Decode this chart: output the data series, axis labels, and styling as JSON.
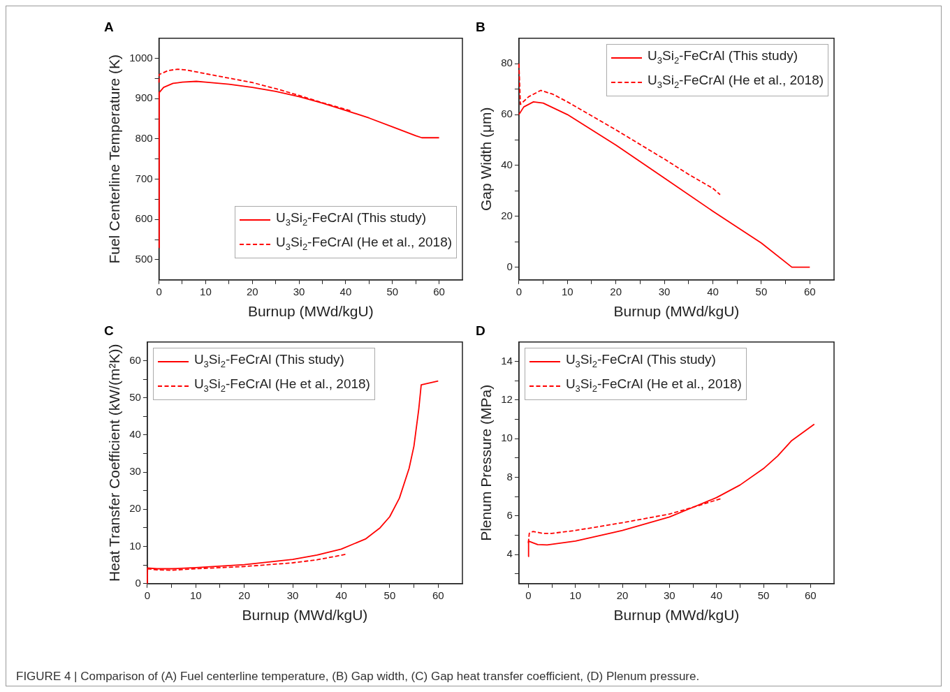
{
  "chart_data": [
    {
      "type": "line",
      "title": "A",
      "xlabel": "Burnup (MWd/kgU)",
      "ylabel": "Fuel Centerline Temperature (K)",
      "xlim": [
        0,
        65
      ],
      "ylim": [
        450,
        1050
      ],
      "xticks": [
        0,
        {
          "value": 5,
          "label": null
        },
        10,
        {
          "value": 15,
          "label": null
        },
        20,
        {
          "value": 25,
          "label": null
        },
        30,
        {
          "value": 35,
          "label": null
        },
        40,
        {
          "value": 45,
          "label": null
        },
        50,
        {
          "value": 55,
          "label": null
        },
        60
      ],
      "yticks": [
        500,
        {
          "value": 550,
          "label": null
        },
        600,
        {
          "value": 650,
          "label": null
        },
        700,
        {
          "value": 750,
          "label": null
        },
        800,
        {
          "value": 850,
          "label": null
        },
        900,
        {
          "value": 950,
          "label": null
        },
        1000
      ],
      "legend": "bottom right",
      "series": [
        {
          "name": "U$_{3}$Si$_{2}$-FeCrAl (This study)",
          "color": "#ff0000",
          "line_style": "solid",
          "x": [
            0,
            0.05,
            1,
            3,
            5,
            8,
            10,
            15,
            20,
            25,
            30,
            35,
            40,
            45,
            50,
            55,
            56.3,
            60
          ],
          "values": [
            530,
            915,
            928,
            938,
            941,
            943,
            941,
            936,
            928,
            918,
            905,
            889,
            871,
            852,
            830,
            808,
            803,
            803
          ]
        },
        {
          "name": "U$_{3}$Si$_{2}$-FeCrAl (He et al., 2018)",
          "color": "#ff0000",
          "line_style": "dashed",
          "x": [
            0,
            0.05,
            2,
            4,
            6,
            10,
            15,
            20,
            25,
            30,
            35,
            41
          ],
          "values": [
            940,
            960,
            970,
            973,
            971,
            962,
            951,
            940,
            925,
            908,
            890,
            870
          ]
        }
      ],
      "annotations": [
        "FIGURE 4 | Comparison of (A) Fuel centerline temperature, (B) Gap width, (C) Gap heat transfer coefficient, (D) Plenum pressure."
      ]
    },
    {
      "type": "line",
      "title": "B",
      "xlabel": "Burnup (MWd/kgU)",
      "ylabel": "Gap Width (μm)",
      "xlim": [
        0,
        65
      ],
      "ylim": [
        -5,
        90
      ],
      "xticks": [
        0,
        {
          "value": 5,
          "label": null
        },
        10,
        {
          "value": 15,
          "label": null
        },
        20,
        {
          "value": 25,
          "label": null
        },
        30,
        {
          "value": 35,
          "label": null
        },
        40,
        {
          "value": 45,
          "label": null
        },
        50,
        {
          "value": 55,
          "label": null
        },
        60
      ],
      "yticks": [
        0,
        {
          "value": 10,
          "label": null
        },
        20,
        {
          "value": 30,
          "label": null
        },
        40,
        {
          "value": 50,
          "label": null
        },
        60,
        {
          "value": 70,
          "label": null
        },
        80
      ],
      "legend": "top right",
      "series": [
        {
          "name": "U$_{3}$Si$_{2}$-FeCrAl (This study)",
          "color": "#ff0000",
          "line_style": "solid",
          "x": [
            0,
            1,
            3,
            5,
            10,
            20,
            30,
            40,
            50,
            56.3,
            60
          ],
          "values": [
            60,
            63,
            65,
            64.5,
            60,
            48,
            35,
            22,
            9.5,
            0,
            0
          ]
        },
        {
          "name": "U$_{3}$Si$_{2}$-FeCrAl (He et al., 2018)",
          "color": "#ff0000",
          "line_style": "dashed",
          "x": [
            0,
            0.3,
            2,
            4.5,
            7,
            10,
            20,
            30,
            35,
            40,
            41.5
          ],
          "values": [
            80,
            64,
            67,
            69.5,
            68,
            65,
            54,
            42.5,
            36.5,
            31,
            28.5
          ]
        }
      ]
    },
    {
      "type": "line",
      "title": "C",
      "xlabel": "Burnup (MWd/kgU)",
      "ylabel": "Heat Transfer Coefficient (kW/(m²K))",
      "xlim": [
        0,
        65
      ],
      "ylim": [
        0,
        65
      ],
      "xticks": [
        0,
        {
          "value": 5,
          "label": null
        },
        10,
        {
          "value": 15,
          "label": null
        },
        20,
        {
          "value": 25,
          "label": null
        },
        30,
        {
          "value": 35,
          "label": null
        },
        40,
        {
          "value": 45,
          "label": null
        },
        50,
        {
          "value": 55,
          "label": null
        },
        60
      ],
      "yticks": [
        0,
        {
          "value": 5,
          "label": null
        },
        10,
        {
          "value": 15,
          "label": null
        },
        20,
        {
          "value": 25,
          "label": null
        },
        30,
        {
          "value": 35,
          "label": null
        },
        40,
        {
          "value": 45,
          "label": null
        },
        50,
        {
          "value": 55,
          "label": null
        },
        60
      ],
      "legend": "top left",
      "series": [
        {
          "name": "U$_{3}$Si$_{2}$-FeCrAl (This study)",
          "color": "#ff0000",
          "line_style": "solid",
          "x": [
            0,
            0.05,
            2,
            5,
            10,
            20,
            30,
            35,
            40,
            45,
            48,
            50,
            52,
            54,
            55,
            56,
            56.5,
            60
          ],
          "values": [
            0,
            4.2,
            4,
            4,
            4.3,
            5.1,
            6.5,
            7.7,
            9.3,
            12,
            15,
            18,
            23,
            31,
            37,
            47,
            53.5,
            54.5
          ]
        },
        {
          "name": "U$_{3}$Si$_{2}$-FeCrAl (He et al., 2018)",
          "color": "#ff0000",
          "line_style": "dashed",
          "x": [
            0,
            2,
            5,
            10,
            20,
            30,
            35,
            41
          ],
          "values": [
            4,
            3.7,
            3.6,
            4,
            4.6,
            5.6,
            6.4,
            7.9
          ]
        }
      ]
    },
    {
      "type": "line",
      "title": "D",
      "xlabel": "Burnup (MWd/kgU)",
      "ylabel": "Plenum Pressure (MPa)",
      "xlim": [
        -2,
        65
      ],
      "ylim": [
        2.5,
        15
      ],
      "xticks": [
        0,
        {
          "value": 5,
          "label": null
        },
        10,
        {
          "value": 15,
          "label": null
        },
        20,
        {
          "value": 25,
          "label": null
        },
        30,
        {
          "value": 35,
          "label": null
        },
        40,
        {
          "value": 45,
          "label": null
        },
        50,
        {
          "value": 55,
          "label": null
        },
        60
      ],
      "yticks": [
        {
          "value": 3,
          "label": null
        },
        4,
        {
          "value": 5,
          "label": null
        },
        6,
        {
          "value": 7,
          "label": null
        },
        8,
        {
          "value": 9,
          "label": null
        },
        10,
        {
          "value": 11,
          "label": null
        },
        12,
        {
          "value": 13,
          "label": null
        },
        14
      ],
      "legend": "top left",
      "series": [
        {
          "name": "U$_{3}$Si$_{2}$-FeCrAl (This study)",
          "color": "#ff0000",
          "line_style": "solid",
          "x": [
            0,
            0.05,
            2,
            4,
            10,
            20,
            30,
            35,
            40,
            45,
            50,
            53,
            56,
            60.8
          ],
          "values": [
            3.9,
            4.7,
            4.52,
            4.5,
            4.7,
            5.25,
            5.95,
            6.45,
            6.95,
            7.6,
            8.45,
            9.1,
            9.9,
            10.75
          ]
        },
        {
          "name": "U$_{3}$Si$_{2}$-FeCrAl (He et al., 2018)",
          "color": "#ff0000",
          "line_style": "dashed",
          "x": [
            0,
            0.2,
            1,
            3,
            5,
            10,
            20,
            30,
            35,
            41
          ],
          "values": [
            4.6,
            5.1,
            5.2,
            5.1,
            5.1,
            5.25,
            5.65,
            6.1,
            6.45,
            6.9
          ]
        }
      ]
    }
  ]
}
